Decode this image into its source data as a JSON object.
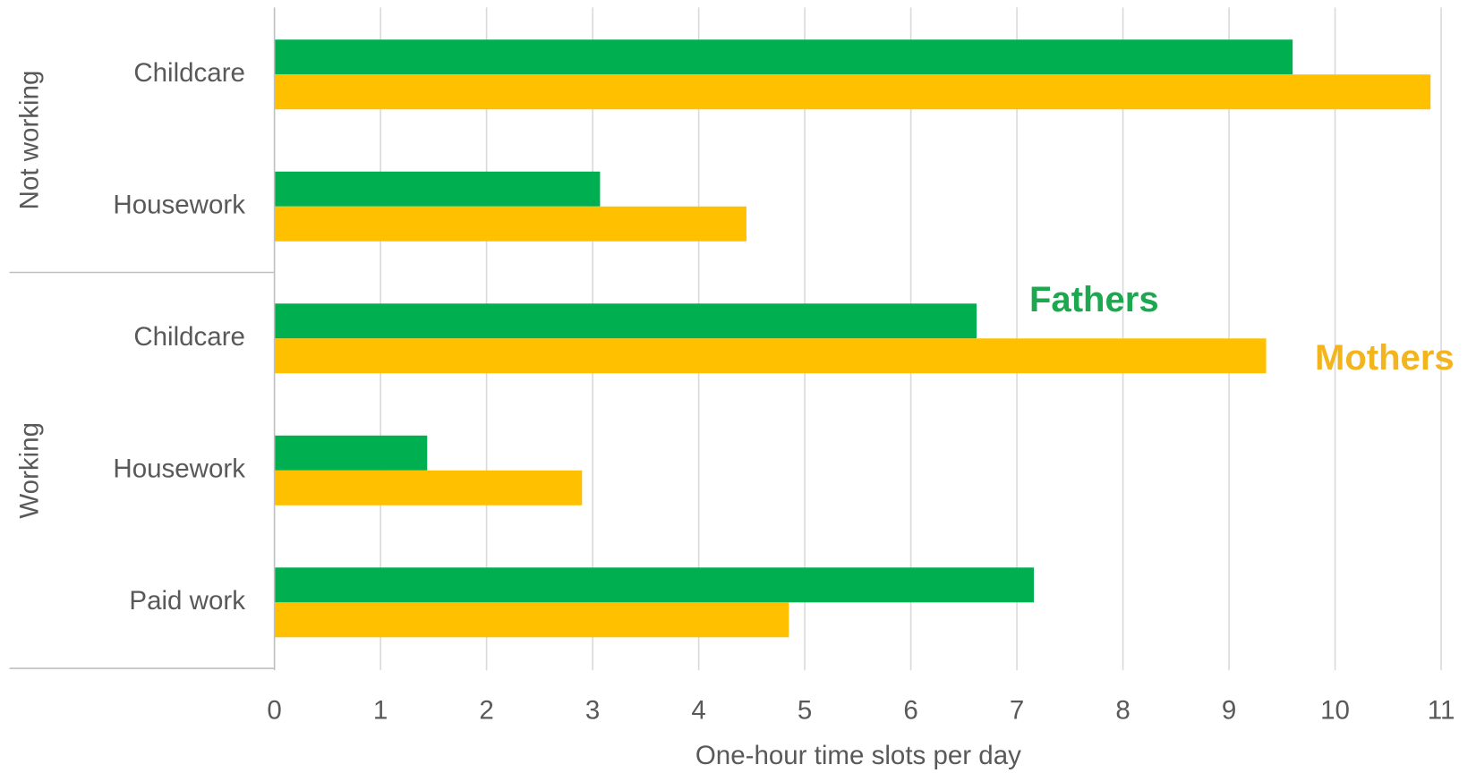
{
  "chart_data": {
    "type": "bar",
    "orientation": "horizontal",
    "groups": [
      {
        "label": "Not working",
        "categories": [
          "Childcare",
          "Housework"
        ]
      },
      {
        "label": "Working",
        "categories": [
          "Childcare",
          "Housework",
          "Paid work"
        ]
      }
    ],
    "series": [
      {
        "name": "Fathers",
        "color": "#00b050",
        "label_color": "#1ba84f",
        "values": [
          9.6,
          3.07,
          6.62,
          1.44,
          7.16
        ]
      },
      {
        "name": "Mothers",
        "color": "#ffc000",
        "label_color": "#f2b51e",
        "values": [
          10.9,
          4.45,
          9.35,
          2.9,
          4.85
        ]
      }
    ],
    "x_label": "One-hour time slots per day",
    "xlim": [
      0,
      11
    ],
    "xticks": [
      0,
      1,
      2,
      3,
      4,
      5,
      6,
      7,
      8,
      9,
      10,
      11
    ],
    "grid": true
  }
}
